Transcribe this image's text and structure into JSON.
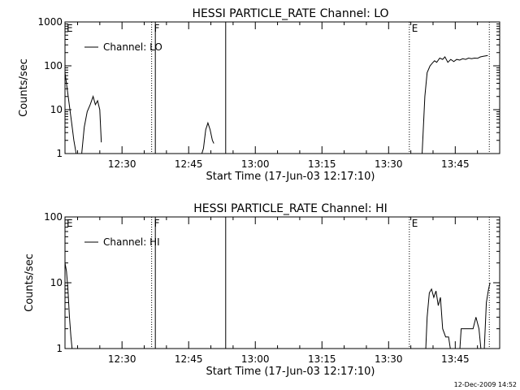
{
  "chart_data": [
    {
      "type": "line",
      "title": "HESSI PARTICLE_RATE Channel: LO",
      "xlabel": "Start Time (17-Jun-03 12:17:10)",
      "ylabel": "Counts/sec",
      "y_scale": "log",
      "ylim": [
        1,
        1000
      ],
      "xlim": [
        "12:17:10",
        "13:55:00"
      ],
      "yticks": [
        "1",
        "10",
        "100",
        "1000"
      ],
      "xticks": [
        "12:30",
        "12:45",
        "13:00",
        "13:15",
        "13:30",
        "13:45"
      ],
      "legend": {
        "position": "top-left",
        "label": "Channel: LO"
      },
      "markers": [
        {
          "time": "12:36:40",
          "label": "F",
          "style": "dotted"
        },
        {
          "time": "12:37:30",
          "label": "",
          "style": "solid"
        },
        {
          "time": "12:53:20",
          "label": "",
          "style": "solid"
        },
        {
          "time": "13:34:40",
          "label": "E",
          "style": "dotted"
        },
        {
          "time": "13:52:40",
          "label": "",
          "style": "dotted"
        }
      ],
      "corner_label": "E",
      "series": [
        {
          "name": "Channel: LO",
          "segments": [
            [
              [
                "12:17:10",
                70
              ],
              [
                "12:17:40",
                30
              ],
              [
                "12:18:10",
                12
              ],
              [
                "12:18:40",
                5
              ],
              [
                "12:19:10",
                2
              ],
              [
                "12:19:50",
                0.8
              ]
            ],
            [
              [
                "12:20:50",
                0.8
              ],
              [
                "12:21:30",
                4
              ],
              [
                "12:22:10",
                9
              ],
              [
                "12:22:50",
                13
              ],
              [
                "12:23:30",
                20
              ],
              [
                "12:24:00",
                13
              ],
              [
                "12:24:30",
                16
              ],
              [
                "12:25:00",
                10
              ],
              [
                "12:25:20",
                1.8
              ]
            ],
            [
              [
                "12:47:40",
                0.8
              ],
              [
                "12:48:20",
                1.3
              ],
              [
                "12:48:50",
                3.5
              ],
              [
                "12:49:20",
                5
              ],
              [
                "12:49:50",
                3.5
              ],
              [
                "12:50:20",
                2
              ],
              [
                "12:50:40",
                1.7
              ]
            ],
            [
              [
                "13:37:30",
                0.8
              ],
              [
                "13:38:10",
                20
              ],
              [
                "13:38:40",
                70
              ],
              [
                "13:39:20",
                100
              ],
              [
                "13:39:50",
                115
              ],
              [
                "13:40:20",
                130
              ],
              [
                "13:40:50",
                120
              ],
              [
                "13:41:30",
                150
              ],
              [
                "13:42:10",
                140
              ],
              [
                "13:42:40",
                160
              ],
              [
                "13:43:20",
                120
              ],
              [
                "13:44:00",
                140
              ],
              [
                "13:44:40",
                125
              ],
              [
                "13:45:20",
                140
              ],
              [
                "13:46:00",
                135
              ],
              [
                "13:46:40",
                145
              ],
              [
                "13:47:20",
                140
              ],
              [
                "13:48:00",
                150
              ],
              [
                "13:48:40",
                145
              ],
              [
                "13:49:20",
                150
              ],
              [
                "13:50:00",
                148
              ],
              [
                "13:50:40",
                160
              ],
              [
                "13:51:20",
                165
              ],
              [
                "13:52:00",
                170
              ],
              [
                "13:52:20",
                172
              ]
            ]
          ]
        }
      ]
    },
    {
      "type": "line",
      "title": "HESSI PARTICLE_RATE Channel: HI",
      "xlabel": "Start Time (17-Jun-03 12:17:10)",
      "ylabel": "Counts/sec",
      "y_scale": "log",
      "ylim": [
        1,
        100
      ],
      "xlim": [
        "12:17:10",
        "13:55:00"
      ],
      "yticks": [
        "1",
        "10",
        "100"
      ],
      "xticks": [
        "12:30",
        "12:45",
        "13:00",
        "13:15",
        "13:30",
        "13:45"
      ],
      "legend": {
        "position": "top-left",
        "label": "Channel: HI"
      },
      "markers": [
        {
          "time": "12:36:40",
          "label": "F",
          "style": "dotted"
        },
        {
          "time": "12:37:30",
          "label": "",
          "style": "solid"
        },
        {
          "time": "12:53:20",
          "label": "",
          "style": "solid"
        },
        {
          "time": "13:34:40",
          "label": "E",
          "style": "dotted"
        },
        {
          "time": "13:52:40",
          "label": "",
          "style": "dotted"
        }
      ],
      "corner_label": "E",
      "series": [
        {
          "name": "Channel: HI",
          "segments": [
            [
              [
                "12:17:10",
                20
              ],
              [
                "12:17:30",
                15
              ],
              [
                "12:17:50",
                8
              ],
              [
                "12:18:10",
                3
              ],
              [
                "12:18:30",
                1.5
              ],
              [
                "12:18:50",
                0.9
              ]
            ],
            [
              [
                "13:38:20",
                0.9
              ],
              [
                "13:38:40",
                3
              ],
              [
                "13:39:10",
                7
              ],
              [
                "13:39:40",
                8
              ],
              [
                "13:40:10",
                6
              ],
              [
                "13:40:40",
                7.5
              ],
              [
                "13:41:10",
                4.5
              ],
              [
                "13:41:40",
                6
              ],
              [
                "13:42:10",
                2
              ],
              [
                "13:42:50",
                1.5
              ],
              [
                "13:43:30",
                1.5
              ],
              [
                "13:44:00",
                0.9
              ]
            ],
            [
              [
                "13:46:00",
                0.9
              ],
              [
                "13:46:20",
                2
              ],
              [
                "13:47:40",
                2
              ],
              [
                "13:49:00",
                2
              ],
              [
                "13:49:40",
                3
              ],
              [
                "13:50:20",
                2
              ],
              [
                "13:50:50",
                0.9
              ]
            ],
            [
              [
                "13:51:30",
                0.9
              ],
              [
                "13:52:00",
                5
              ],
              [
                "13:52:30",
                8
              ],
              [
                "13:52:50",
                10
              ]
            ]
          ]
        }
      ]
    }
  ],
  "stamp": "12-Dec-2009 14:52"
}
